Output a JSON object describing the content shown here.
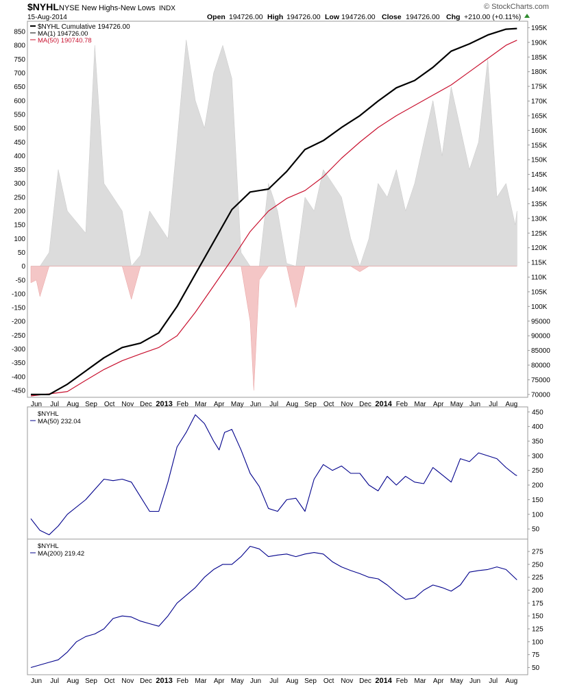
{
  "header": {
    "symbol": "$NYHL",
    "name": "NYSE New Highs-New Lows",
    "exchange": "INDX",
    "date": "15-Aug-2014",
    "open_label": "Open",
    "open": "194726.00",
    "high_label": "High",
    "high": "194726.00",
    "low_label": "Low",
    "low": "194726.00",
    "close_label": "Close",
    "close": "194726.00",
    "chg_label": "Chg",
    "chg": "+210.00 (+0.11%)",
    "brand": "© StockCharts.com",
    "up_color": "#2e8b2e"
  },
  "chart_data": [
    {
      "type": "area+line",
      "panel": "main",
      "legend": [
        {
          "label": "$NYHL Cumulative 194726.00",
          "color": "#000000"
        },
        {
          "label": "MA(1) 194726.00",
          "color": "#000000"
        },
        {
          "label": "MA(50) 190740.78",
          "color": "#c8102e"
        }
      ],
      "left_axis": {
        "ticks": [
          -450,
          -400,
          -350,
          -300,
          -250,
          -200,
          -150,
          -100,
          -50,
          0,
          50,
          100,
          150,
          200,
          250,
          300,
          350,
          400,
          450,
          500,
          550,
          600,
          650,
          700,
          750,
          800,
          850
        ],
        "range": [
          -470,
          880
        ]
      },
      "right_axis": {
        "ticks": [
          "70000",
          "75000",
          "80000",
          "85000",
          "90000",
          "95000",
          "100K",
          "105K",
          "110K",
          "115K",
          "120K",
          "125K",
          "130K",
          "135K",
          "140K",
          "145K",
          "150K",
          "155K",
          "160K",
          "165K",
          "170K",
          "175K",
          "180K",
          "185K",
          "190K",
          "195K"
        ],
        "range": [
          69500,
          196500
        ]
      },
      "x_range": [
        0,
        27
      ],
      "cumulative": {
        "x": [
          0,
          1,
          2,
          3,
          4,
          5,
          6,
          7,
          8,
          9,
          10,
          11,
          12,
          13,
          14,
          15,
          16,
          17,
          18,
          19,
          20,
          21,
          22,
          23,
          24,
          25,
          26,
          26.6
        ],
        "y": [
          70000,
          70000,
          73500,
          78000,
          82500,
          86000,
          87500,
          91000,
          100000,
          111000,
          122000,
          133000,
          139000,
          140000,
          146000,
          153500,
          156500,
          161000,
          165000,
          170000,
          174500,
          177000,
          181500,
          187000,
          189500,
          192500,
          194500,
          194726
        ]
      },
      "ma50": {
        "x": [
          0,
          1,
          2,
          3,
          4,
          5,
          6,
          7,
          8,
          9,
          10,
          11,
          12,
          13,
          14,
          15,
          16,
          17,
          18,
          19,
          20,
          21,
          22,
          23,
          24,
          25,
          26,
          26.6
        ],
        "y": [
          69500,
          70200,
          71000,
          74800,
          78500,
          81500,
          83800,
          86000,
          90000,
          98000,
          107000,
          116000,
          125500,
          132500,
          136800,
          139500,
          144200,
          150500,
          156000,
          161000,
          165000,
          168500,
          172000,
          175500,
          180000,
          184500,
          189000,
          190741
        ]
      },
      "daily": {
        "x": [
          0,
          0.3,
          0.5,
          1,
          1.5,
          2,
          3,
          3.5,
          4,
          5,
          5.5,
          6,
          6.5,
          7,
          7.5,
          8,
          8.5,
          9,
          9.5,
          10,
          10.5,
          11,
          11.5,
          12,
          12.2,
          12.5,
          13,
          13.5,
          14,
          14.5,
          15,
          15.5,
          16,
          16.5,
          17,
          17.5,
          18,
          18.5,
          19,
          19.5,
          20,
          20.5,
          21,
          21.5,
          22,
          22.5,
          23,
          23.5,
          24,
          24.5,
          25,
          25.5,
          26,
          26.5,
          26.6
        ],
        "y": [
          -60,
          -50,
          -110,
          50,
          350,
          200,
          120,
          800,
          300,
          200,
          -120,
          40,
          200,
          150,
          100,
          450,
          820,
          600,
          500,
          700,
          800,
          680,
          50,
          -200,
          -450,
          -50,
          300,
          200,
          10,
          -150,
          250,
          200,
          350,
          300,
          250,
          100,
          -20,
          100,
          300,
          250,
          350,
          200,
          300,
          450,
          600,
          400,
          650,
          500,
          350,
          450,
          750,
          250,
          300,
          150,
          200
        ]
      },
      "x_labels": [
        "Jun",
        "Jul",
        "Aug",
        "Sep",
        "Oct",
        "Nov",
        "Dec",
        "2013",
        "Feb",
        "Mar",
        "Apr",
        "May",
        "Jun",
        "Jul",
        "Aug",
        "Sep",
        "Oct",
        "Nov",
        "Dec",
        "2014",
        "Feb",
        "Mar",
        "Apr",
        "May",
        "Jun",
        "Jul",
        "Aug"
      ]
    },
    {
      "type": "line",
      "panel": "ma50",
      "legend": [
        {
          "label": "$NYHL",
          "color": "#000000"
        },
        {
          "label": "MA(50) 232.04",
          "color": "#00008b"
        }
      ],
      "right_axis": {
        "ticks": [
          50,
          100,
          150,
          200,
          250,
          300,
          350,
          400,
          450
        ],
        "range": [
          20,
          460
        ]
      },
      "series": {
        "x": [
          0,
          0.5,
          1,
          1.5,
          2,
          3,
          3.5,
          4,
          4.5,
          5,
          5.5,
          6,
          6.5,
          7,
          7.5,
          8,
          8.5,
          9,
          9.5,
          10,
          10.3,
          10.6,
          11,
          11.5,
          12,
          12.5,
          13,
          13.5,
          14,
          14.5,
          15,
          15.5,
          16,
          16.5,
          17,
          17.5,
          18,
          18.5,
          19,
          19.5,
          20,
          20.5,
          21,
          21.5,
          22,
          22.5,
          23,
          23.5,
          24,
          24.5,
          25,
          25.5,
          26,
          26.5,
          26.6
        ],
        "y": [
          85,
          45,
          30,
          60,
          100,
          150,
          185,
          220,
          215,
          220,
          210,
          160,
          110,
          110,
          210,
          330,
          380,
          440,
          410,
          350,
          320,
          380,
          390,
          320,
          240,
          195,
          120,
          110,
          150,
          155,
          110,
          220,
          270,
          250,
          265,
          240,
          240,
          200,
          180,
          230,
          200,
          230,
          210,
          205,
          260,
          235,
          210,
          290,
          280,
          310,
          300,
          290,
          260,
          235,
          232
        ]
      },
      "x_labels": []
    },
    {
      "type": "line",
      "panel": "ma200",
      "legend": [
        {
          "label": "$NYHL",
          "color": "#000000"
        },
        {
          "label": "MA(200) 219.42",
          "color": "#00008b"
        }
      ],
      "right_axis": {
        "ticks": [
          50,
          75,
          100,
          125,
          150,
          175,
          200,
          225,
          250,
          275
        ],
        "range": [
          40,
          295
        ]
      },
      "series": {
        "x": [
          0,
          1,
          1.5,
          2,
          2.5,
          3,
          3.5,
          4,
          4.5,
          5,
          5.5,
          6,
          6.5,
          7,
          7.5,
          8,
          8.5,
          9,
          9.5,
          10,
          10.5,
          11,
          11.5,
          12,
          12.5,
          13,
          13.5,
          14,
          14.5,
          15,
          15.5,
          16,
          16.5,
          17,
          17.5,
          18,
          18.5,
          19,
          19.5,
          20,
          20.5,
          21,
          21.5,
          22,
          22.5,
          23,
          23.5,
          24,
          24.5,
          25,
          25.5,
          26,
          26.6
        ],
        "y": [
          50,
          60,
          65,
          80,
          100,
          110,
          115,
          125,
          145,
          150,
          148,
          140,
          135,
          130,
          150,
          175,
          190,
          205,
          225,
          240,
          250,
          250,
          265,
          285,
          280,
          265,
          268,
          270,
          265,
          270,
          273,
          270,
          255,
          245,
          238,
          232,
          225,
          222,
          210,
          195,
          182,
          185,
          200,
          210,
          205,
          198,
          210,
          235,
          238,
          240,
          245,
          240,
          220
        ]
      },
      "x_labels": [
        "Jun",
        "Jul",
        "Aug",
        "Sep",
        "Oct",
        "Nov",
        "Dec",
        "2013",
        "Feb",
        "Mar",
        "Apr",
        "May",
        "Jun",
        "Jul",
        "Aug",
        "Sep",
        "Oct",
        "Nov",
        "Dec",
        "2014",
        "Feb",
        "Mar",
        "Apr",
        "May",
        "Jun",
        "Jul",
        "Aug"
      ]
    }
  ]
}
